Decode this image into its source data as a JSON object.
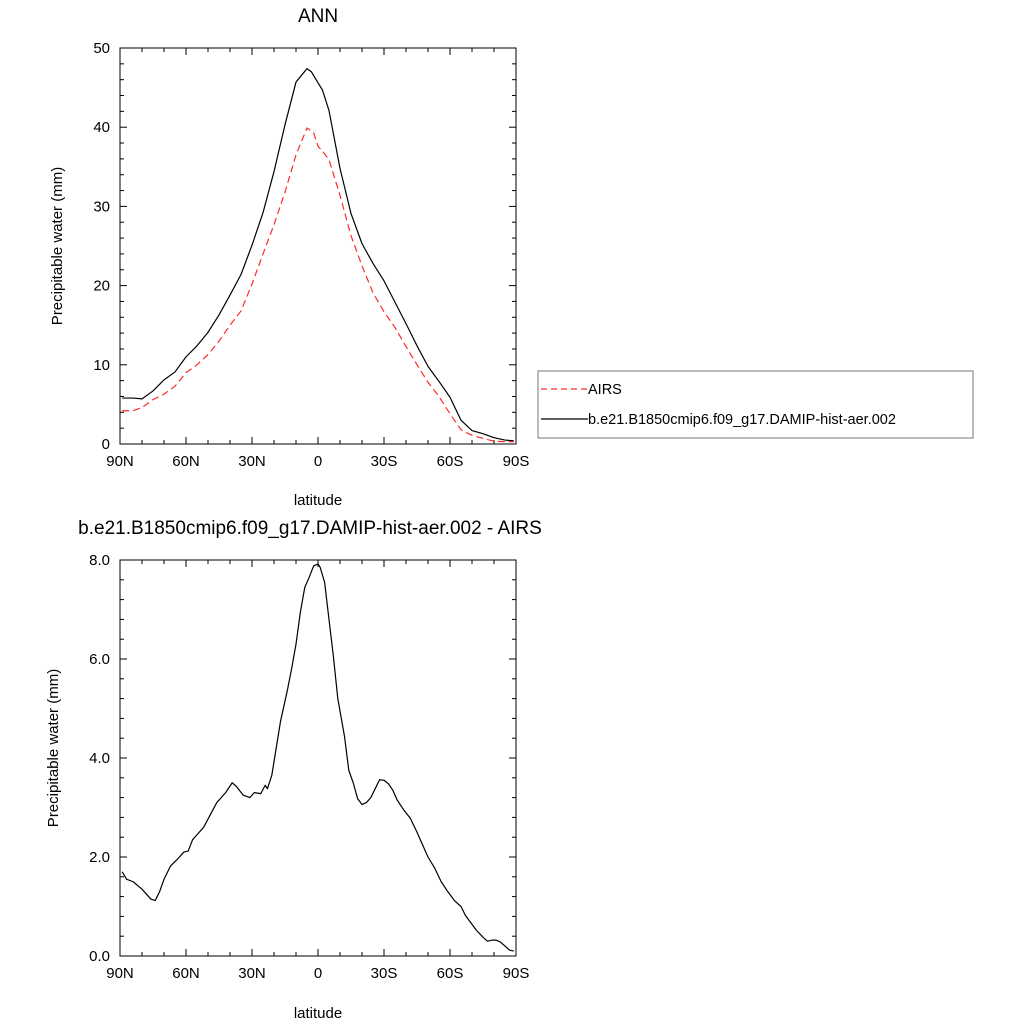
{
  "chart_data": [
    {
      "type": "line",
      "title": "ANN",
      "xlabel": "latitude",
      "ylabel": "Precipitable water (mm)",
      "x_ticks": [
        "90N",
        "60N",
        "30N",
        "0",
        "30S",
        "60S",
        "90S"
      ],
      "y_ticks": [
        "0",
        "10",
        "20",
        "30",
        "40",
        "50"
      ],
      "xlim": [
        -90,
        90
      ],
      "ylim": [
        0,
        50
      ],
      "grid": false,
      "legend_position": "right, outside plot",
      "series": [
        {
          "name": "AIRS",
          "color": "#ff2a2a",
          "dash": "dashed",
          "x": [
            -89,
            -84,
            -80,
            -75,
            -70,
            -65,
            -60,
            -55,
            -50,
            -45,
            -40,
            -35,
            -30,
            -25,
            -20,
            -15,
            -10,
            -5,
            -2,
            0,
            2,
            5,
            10,
            15,
            20,
            25,
            30,
            35,
            40,
            45,
            50,
            55,
            60,
            65,
            70,
            75,
            80,
            85,
            89
          ],
          "y": [
            4.2,
            4.2,
            4.6,
            5.6,
            6.3,
            7.3,
            9.0,
            10.0,
            11.3,
            13.0,
            15.0,
            16.8,
            20.2,
            24.0,
            27.7,
            31.8,
            36.5,
            39.9,
            39.3,
            37.6,
            37.0,
            35.9,
            31.4,
            26.3,
            22.5,
            19.1,
            16.7,
            14.7,
            12.3,
            10.0,
            7.8,
            6.0,
            3.8,
            1.8,
            1.1,
            0.7,
            0.35,
            0.3,
            0.3
          ]
        },
        {
          "name": "b.e21.B1850cmip6.f09_g17.DAMIP-hist-aer.002",
          "color": "#000000",
          "dash": "solid",
          "x": [
            -89,
            -84,
            -80,
            -75,
            -70,
            -65,
            -60,
            -55,
            -50,
            -45,
            -40,
            -35,
            -30,
            -25,
            -20,
            -15,
            -10,
            -5,
            -3,
            0,
            2,
            5,
            10,
            15,
            20,
            25,
            30,
            35,
            40,
            45,
            50,
            55,
            60,
            65,
            70,
            75,
            80,
            85,
            89
          ],
          "y": [
            5.8,
            5.8,
            5.7,
            6.7,
            8.1,
            9.1,
            11.0,
            12.4,
            14.1,
            16.3,
            18.8,
            21.4,
            25.1,
            29.2,
            34.4,
            40.3,
            45.7,
            47.4,
            47.0,
            45.6,
            44.7,
            42.1,
            34.8,
            29.1,
            25.3,
            22.8,
            20.6,
            17.9,
            15.2,
            12.4,
            9.8,
            7.9,
            5.9,
            3.0,
            1.7,
            1.3,
            0.8,
            0.5,
            0.4
          ]
        }
      ]
    },
    {
      "type": "line",
      "title": "b.e21.B1850cmip6.f09_g17.DAMIP-hist-aer.002 - AIRS",
      "xlabel": "latitude",
      "ylabel": "Precipitable water (mm)",
      "x_ticks": [
        "90N",
        "60N",
        "30N",
        "0",
        "30S",
        "60S",
        "90S"
      ],
      "y_ticks": [
        "0.0",
        "2.0",
        "4.0",
        "6.0",
        "8.0"
      ],
      "xlim": [
        -90,
        90
      ],
      "ylim": [
        0,
        8
      ],
      "grid": false,
      "series": [
        {
          "color": "#000000",
          "dash": "solid",
          "x": [
            -89,
            -87,
            -84,
            -80,
            -76,
            -74,
            -72,
            -70,
            -67,
            -64,
            -61,
            -59,
            -57,
            -55,
            -52,
            -49,
            -46,
            -44,
            -42,
            -39,
            -37,
            -34,
            -31,
            -29,
            -26,
            -24,
            -23,
            -21,
            -19,
            -17,
            -14,
            -12,
            -10,
            -8,
            -6,
            -4,
            -2,
            0,
            1,
            3,
            5,
            7,
            9,
            12,
            14,
            16,
            18,
            20,
            22,
            24,
            26,
            28,
            30,
            32,
            34,
            36,
            39,
            42,
            45,
            48,
            50,
            53,
            56,
            59,
            62,
            65,
            67,
            69,
            72,
            75,
            77,
            79,
            81,
            83,
            85,
            87,
            89
          ],
          "y": [
            1.7,
            1.55,
            1.5,
            1.35,
            1.15,
            1.12,
            1.3,
            1.55,
            1.82,
            1.95,
            2.1,
            2.12,
            2.35,
            2.45,
            2.6,
            2.85,
            3.1,
            3.2,
            3.3,
            3.5,
            3.42,
            3.25,
            3.2,
            3.3,
            3.28,
            3.45,
            3.38,
            3.65,
            4.2,
            4.75,
            5.35,
            5.8,
            6.3,
            6.95,
            7.45,
            7.65,
            7.88,
            7.92,
            7.85,
            7.55,
            6.8,
            6.05,
            5.2,
            4.45,
            3.75,
            3.5,
            3.18,
            3.06,
            3.1,
            3.2,
            3.38,
            3.56,
            3.55,
            3.48,
            3.35,
            3.15,
            2.95,
            2.78,
            2.5,
            2.2,
            2.0,
            1.78,
            1.5,
            1.3,
            1.12,
            1.0,
            0.82,
            0.7,
            0.52,
            0.38,
            0.3,
            0.32,
            0.32,
            0.28,
            0.2,
            0.12,
            0.1
          ]
        }
      ]
    }
  ]
}
